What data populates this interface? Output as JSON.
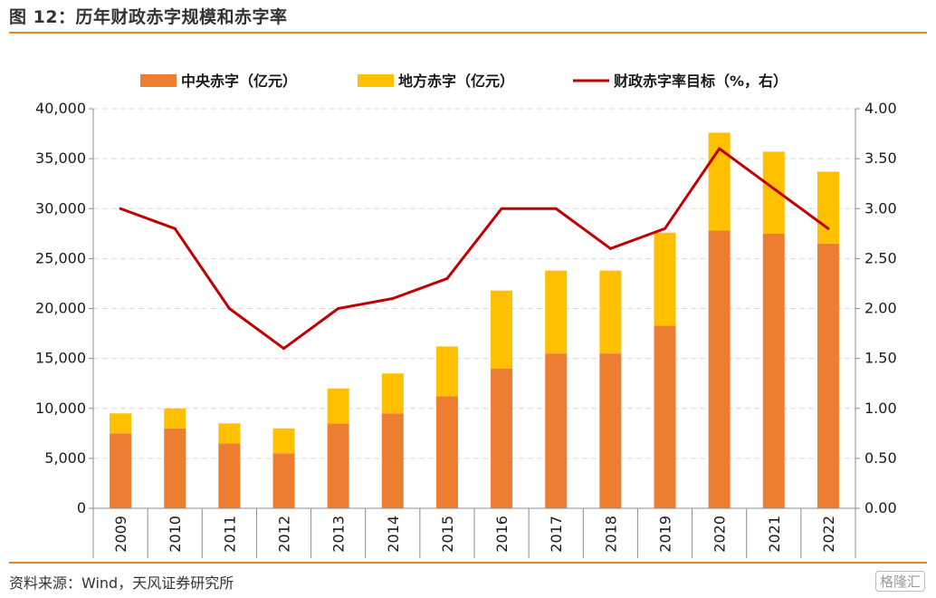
{
  "header": {
    "title": "图 12：历年财政赤字规模和赤字率"
  },
  "footer": {
    "source": "资料来源：Wind，天风证券研究所",
    "watermark": "格隆汇"
  },
  "chart_data": {
    "type": "bar",
    "stacked": true,
    "categories": [
      "2009",
      "2010",
      "2011",
      "2012",
      "2013",
      "2014",
      "2015",
      "2016",
      "2017",
      "2018",
      "2019",
      "2020",
      "2021",
      "2022"
    ],
    "series": [
      {
        "name": "中央赤字（亿元）",
        "type": "bar",
        "axis": "left",
        "color": "#ed7d31",
        "values": [
          7500,
          8000,
          6500,
          5500,
          8500,
          9500,
          11200,
          14000,
          15500,
          15500,
          18300,
          27800,
          27500,
          26500
        ]
      },
      {
        "name": "地方赤字（亿元）",
        "type": "bar",
        "axis": "left",
        "color": "#ffc000",
        "values": [
          2000,
          2000,
          2000,
          2500,
          3500,
          4000,
          5000,
          7800,
          8300,
          8300,
          9300,
          9800,
          8200,
          7200
        ]
      },
      {
        "name": "财政赤字率目标（%，右）",
        "type": "line",
        "axis": "right",
        "color": "#c00000",
        "values": [
          3.0,
          2.8,
          2.0,
          1.6,
          2.0,
          2.1,
          2.3,
          3.0,
          3.0,
          2.6,
          2.8,
          3.6,
          3.2,
          2.8
        ]
      }
    ],
    "left_axis": {
      "ylim": [
        0,
        40000
      ],
      "tick_labels": [
        "0",
        "5,000",
        "10,000",
        "15,000",
        "20,000",
        "25,000",
        "30,000",
        "35,000",
        "40,000"
      ]
    },
    "right_axis": {
      "ylim": [
        0,
        4
      ],
      "tick_labels": [
        "0.00",
        "0.50",
        "1.00",
        "1.50",
        "2.00",
        "2.50",
        "3.00",
        "3.50",
        "4.00"
      ]
    },
    "grid": true,
    "legend_position": "top"
  }
}
